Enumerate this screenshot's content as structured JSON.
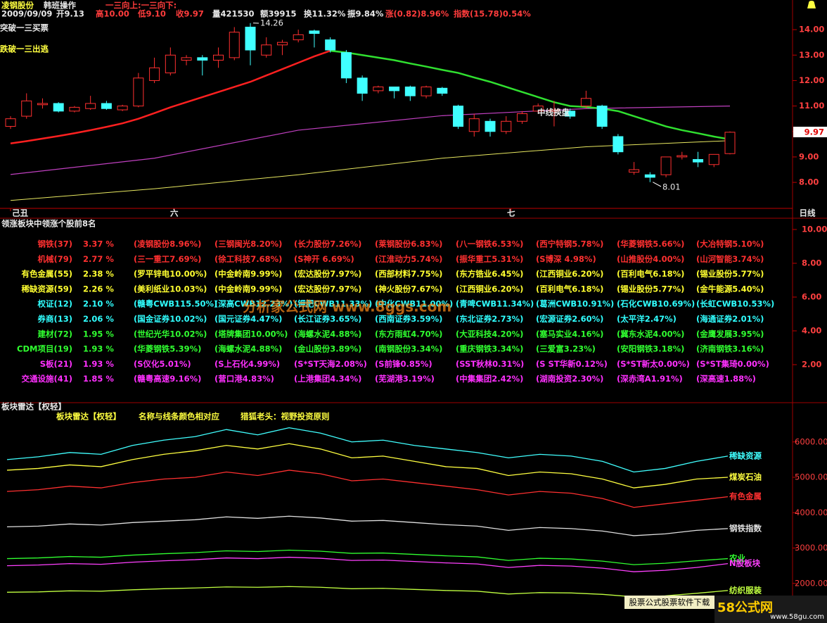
{
  "header": {
    "stock": "凌钢股份",
    "operator": "韩班操作",
    "signal": "一三向上:一三向下:",
    "quote": [
      "2009/09/09",
      "开9.13",
      "高10.00",
      "低9.10",
      "收9.97",
      "量421530",
      "额39915",
      "换11.32%",
      "振9.84%",
      "涨(0.82)8.96%",
      "指数(15.78)0.54%"
    ]
  },
  "kline": {
    "labels": [
      "突破一三买票",
      "跌破一三出逃"
    ],
    "period": "日线",
    "ylim": [
      7.09,
      14.39
    ],
    "yticks": [
      {
        "value": 8,
        "label": "8.00"
      },
      {
        "value": 9,
        "label": "9.00"
      },
      {
        "value": 10,
        "label": "10.00"
      },
      {
        "value": 11,
        "label": "11.00"
      },
      {
        "value": 12,
        "label": "12.00"
      },
      {
        "value": 13,
        "label": "13.00"
      },
      {
        "value": 14,
        "label": "14.00"
      }
    ],
    "xlabels": [
      "己丑",
      "六",
      "七"
    ],
    "candles": [
      [
        10.2,
        10.6,
        10.1,
        10.5
      ],
      [
        10.6,
        11.5,
        10.5,
        11.2
      ],
      [
        11.05,
        11.3,
        10.9,
        11.1
      ],
      [
        11.1,
        11.15,
        10.75,
        10.8
      ],
      [
        10.8,
        11.0,
        10.75,
        10.95
      ],
      [
        10.9,
        11.4,
        10.85,
        11.1
      ],
      [
        11.1,
        11.2,
        10.85,
        10.9
      ],
      [
        10.85,
        11.05,
        10.8,
        11.0
      ],
      [
        11.0,
        12.3,
        10.95,
        12.1
      ],
      [
        12.0,
        12.9,
        11.9,
        12.5
      ],
      [
        12.3,
        13.3,
        12.2,
        13.0
      ],
      [
        12.8,
        13.0,
        12.6,
        12.9
      ],
      [
        12.9,
        13.0,
        12.2,
        12.8
      ],
      [
        12.8,
        13.3,
        12.5,
        13.0
      ],
      [
        12.9,
        14.1,
        12.8,
        13.9
      ],
      [
        14.1,
        14.26,
        12.6,
        13.2
      ],
      [
        13.0,
        13.7,
        12.9,
        13.4
      ],
      [
        13.4,
        13.6,
        13.0,
        13.5
      ],
      [
        13.6,
        14.0,
        13.5,
        13.8
      ],
      [
        13.95,
        14.0,
        13.3,
        13.85
      ],
      [
        13.6,
        13.7,
        13.1,
        13.2
      ],
      [
        13.1,
        13.2,
        11.9,
        12.1
      ],
      [
        12.1,
        12.2,
        11.2,
        11.5
      ],
      [
        11.6,
        11.8,
        11.5,
        11.75
      ],
      [
        11.75,
        11.75,
        11.3,
        11.6
      ],
      [
        11.75,
        11.8,
        11.2,
        11.4
      ],
      [
        11.4,
        11.8,
        11.3,
        11.75
      ],
      [
        11.7,
        11.75,
        11.4,
        11.5
      ],
      [
        11.0,
        11.05,
        10.1,
        10.2
      ],
      [
        10.0,
        10.7,
        9.8,
        10.5
      ],
      [
        10.4,
        10.5,
        9.8,
        10.0
      ],
      [
        10.0,
        10.6,
        9.9,
        10.4
      ],
      [
        10.4,
        10.8,
        10.3,
        10.7
      ],
      [
        10.8,
        11.1,
        10.7,
        11.0
      ],
      [
        10.8,
        11.2,
        10.2,
        10.85
      ],
      [
        10.8,
        10.9,
        10.5,
        10.6
      ],
      [
        11.0,
        11.6,
        10.9,
        11.3
      ],
      [
        11.0,
        11.05,
        10.1,
        10.2
      ],
      [
        9.8,
        9.9,
        9.1,
        9.2
      ],
      [
        8.4,
        8.8,
        8.3,
        8.5
      ],
      [
        8.3,
        8.4,
        8.01,
        8.2
      ],
      [
        8.3,
        9.0,
        8.2,
        9.0
      ],
      [
        9.0,
        9.2,
        8.9,
        9.05
      ],
      [
        8.9,
        9.2,
        8.6,
        8.8
      ],
      [
        8.7,
        9.1,
        8.6,
        9.1
      ],
      [
        9.13,
        10.0,
        9.1,
        9.97
      ]
    ],
    "ma_red": [
      9.53,
      9.62,
      9.72,
      9.82,
      9.93,
      10.05,
      10.18,
      10.32,
      10.5,
      10.72,
      10.95,
      11.15,
      11.35,
      11.55,
      11.75,
      11.95,
      12.2,
      12.45,
      12.7,
      12.95,
      13.17,
      null,
      null,
      null,
      null,
      null,
      null,
      null,
      null,
      null,
      null,
      null,
      null,
      null,
      null,
      null,
      null,
      null,
      null,
      null,
      null,
      null,
      null,
      null,
      null,
      null
    ],
    "ma_green": [
      null,
      null,
      null,
      null,
      null,
      null,
      null,
      null,
      null,
      null,
      null,
      null,
      null,
      null,
      null,
      null,
      null,
      null,
      null,
      null,
      13.17,
      13.1,
      13.0,
      12.9,
      12.8,
      12.67,
      12.55,
      12.42,
      12.3,
      12.12,
      11.95,
      11.75,
      11.55,
      11.35,
      11.15,
      11.0,
      10.96,
      10.9,
      10.8,
      10.6,
      10.4,
      10.2,
      10.05,
      9.93,
      9.8,
      9.69
    ],
    "ma_long_x": [
      0,
      9,
      18,
      27,
      36,
      45
    ],
    "ma_magenta": [
      8.31,
      8.95,
      10.05,
      10.62,
      10.9,
      11.0
    ],
    "ma_yellow": [
      7.29,
      7.75,
      8.3,
      8.95,
      9.4,
      9.64
    ],
    "high_label": "14.26",
    "low_label": "8.01",
    "note": "中线换盘",
    "last_price": "9.97"
  },
  "sectors": {
    "title": "领涨板块中领涨个股前8名",
    "yticks": [
      {
        "value": 2,
        "label": "2.00"
      },
      {
        "value": 4,
        "label": "4.00"
      },
      {
        "value": 6,
        "label": "6.00"
      },
      {
        "value": 8,
        "label": "8.00"
      },
      {
        "value": 10,
        "label": "10.00"
      }
    ],
    "ylim": [
      0,
      10.5
    ],
    "rows": [
      {
        "name": "钢铁(37)",
        "pct": "3.37 %",
        "stocks": [
          "(凌钢股份8.96%)",
          "(三钢闽光8.20%)",
          "(长力股份7.26%)",
          "(莱钢股份6.83%)",
          "(八一钢铁6.53%)",
          "(西宁特钢5.78%)",
          "(华菱钢铁5.66%)",
          "(大冶特钢5.10%)"
        ]
      },
      {
        "name": "机械(79)",
        "pct": "2.77 %",
        "stocks": [
          "(三一重工7.69%)",
          "(徐工科技7.68%)",
          "(S神开  6.69%)",
          "(江淮动力5.74%)",
          "(振华重工5.31%)",
          "(S博深  4.98%)",
          "(山推股份4.00%)",
          "(山河智能3.74%)"
        ]
      },
      {
        "name": "有色金属(55)",
        "pct": "2.38 %",
        "stocks": [
          "(罗平锌电10.00%)",
          "(中金岭南9.99%)",
          "(宏达股份7.97%)",
          "(西部材料7.75%)",
          "(东方锆业6.45%)",
          "(江西铜业6.20%)",
          "(百利电气6.18%)",
          "(锡业股份5.77%)"
        ]
      },
      {
        "name": "稀缺资源(59)",
        "pct": "2.26 %",
        "stocks": [
          "(美利纸业10.03%)",
          "(中金岭南9.99%)",
          "(宏达股份7.97%)",
          "(神火股份7.67%)",
          "(江西铜业6.20%)",
          "(百利电气6.18%)",
          "(锡业股份5.77%)",
          "(金牛能源5.40%)"
        ]
      },
      {
        "name": "权证(12)",
        "pct": "2.10 %",
        "stocks": [
          "(赣粤CWB115.50%)",
          "(深高CWB12.23%)",
          "(钾肥CWB11.33%)",
          "(中化CWB11.00%)",
          "(青啤CWB11.34%)",
          "(葛洲CWB10.91%)",
          "(石化CWB10.69%)",
          "(长虹CWB10.53%)"
        ]
      },
      {
        "name": "券商(13)",
        "pct": "2.06 %",
        "stocks": [
          "(国金证券10.02%)",
          "(国元证券4.47%)",
          "(长江证券3.65%)",
          "(西南证券3.59%)",
          "(东北证券2.73%)",
          "(宏源证券2.60%)",
          "(太平洋2.47%)",
          "(海通证券2.01%)"
        ]
      },
      {
        "name": "建材(72)",
        "pct": "1.95 %",
        "stocks": [
          "(世纪光华10.02%)",
          "(塔牌集团10.00%)",
          "(海螺水泥4.88%)",
          "(东方雨虹4.70%)",
          "(大亚科技4.20%)",
          "(塞马实业4.16%)",
          "(冀东水泥4.00%)",
          "(金鹰发展3.95%)"
        ]
      },
      {
        "name": "CDM项目(19)",
        "pct": "1.93 %",
        "stocks": [
          "(华菱钢铁5.39%)",
          "(海螺水泥4.88%)",
          "(金山股份3.89%)",
          "(南钢股份3.34%)",
          "(重庆钢铁3.34%)",
          "(三爱富3.23%)",
          "(安阳钢铁3.18%)",
          "(济南钢铁3.16%)"
        ]
      },
      {
        "name": "S板(21)",
        "pct": "1.93 %",
        "stocks": [
          "(S仪化5.01%)",
          "(S上石化4.99%)",
          "(S*ST天海2.08%)",
          "(S前锋0.85%)",
          "(SST秋林0.31%)",
          "(S ST华新0.12%)",
          "(S*ST新太0.00%)",
          "(S*ST集琦0.00%)"
        ]
      },
      {
        "name": "交通设施(41)",
        "pct": "1.85 %",
        "stocks": [
          "(赣粤高速9.16%)",
          "(营口港4.83%)",
          "(上港集团4.34%)",
          "(芜湖港3.19%)",
          "(中集集团2.42%)",
          "(湖南投资2.30%)",
          "(深赤湾A1.91%)",
          "(深高速1.88%)"
        ]
      }
    ]
  },
  "radar": {
    "title": "板块雷达【权轻】",
    "subtitle": [
      "板块雷达【权轻】",
      "名称与线条颜色相对应",
      "猎狐老头：视野投资原则"
    ],
    "ylim": [
      1000,
      7050
    ],
    "yticks": [
      {
        "value": 2000,
        "label": "2000.00"
      },
      {
        "value": 3000,
        "label": "3000.00"
      },
      {
        "value": 4000,
        "label": "4000.00"
      },
      {
        "value": 5000,
        "label": "5000.00"
      },
      {
        "value": 6000,
        "label": "6000.00"
      }
    ],
    "series": [
      {
        "name": "稀缺资源",
        "color": "#40ffff",
        "values": [
          5500,
          5580,
          5700,
          5650,
          5900,
          6050,
          6150,
          6350,
          6200,
          6400,
          6250,
          6000,
          6050,
          5900,
          5800,
          5700,
          5550,
          5650,
          5600,
          5450,
          5150,
          5250,
          5450,
          5600
        ]
      },
      {
        "name": "煤炭石油",
        "color": "#ffff40",
        "values": [
          5200,
          5250,
          5350,
          5300,
          5500,
          5650,
          5750,
          5900,
          5800,
          5950,
          5800,
          5550,
          5600,
          5450,
          5300,
          5250,
          5050,
          5150,
          5100,
          4950,
          4700,
          4800,
          4950,
          5000
        ]
      },
      {
        "name": "有色金属",
        "color": "#ff3030",
        "values": [
          4600,
          4650,
          4750,
          4700,
          4850,
          4950,
          5000,
          5150,
          5050,
          5200,
          5100,
          4900,
          4950,
          4850,
          4750,
          4650,
          4500,
          4600,
          4550,
          4400,
          4150,
          4250,
          4350,
          4450
        ]
      },
      {
        "name": "钢铁指数",
        "color": "#e0e0e0",
        "values": [
          3600,
          3620,
          3680,
          3650,
          3720,
          3760,
          3800,
          3880,
          3840,
          3900,
          3850,
          3760,
          3780,
          3720,
          3660,
          3620,
          3500,
          3580,
          3550,
          3480,
          3350,
          3400,
          3500,
          3550
        ]
      },
      {
        "name": "农业",
        "color": "#30ff30",
        "values": [
          2700,
          2720,
          2760,
          2740,
          2800,
          2840,
          2870,
          2920,
          2900,
          2940,
          2910,
          2850,
          2860,
          2820,
          2780,
          2750,
          2650,
          2710,
          2690,
          2630,
          2530,
          2570,
          2640,
          2700
        ]
      },
      {
        "name": "N股板块",
        "color": "#ff40ff",
        "values": [
          2500,
          2520,
          2560,
          2540,
          2600,
          2640,
          2670,
          2720,
          2700,
          2740,
          2710,
          2650,
          2660,
          2620,
          2580,
          2550,
          2450,
          2510,
          2490,
          2430,
          2330,
          2370,
          2450,
          2560
        ]
      },
      {
        "name": "纺织服装",
        "color": "#c0ff40",
        "values": [
          1750,
          1760,
          1790,
          1780,
          1820,
          1850,
          1870,
          1900,
          1890,
          1910,
          1890,
          1850,
          1860,
          1830,
          1800,
          1780,
          1700,
          1740,
          1730,
          1690,
          1620,
          1650,
          1720,
          1800
        ]
      }
    ]
  },
  "watermark": "分析家公式网 www.8ggs.com",
  "footer": {
    "download": "股票公式股票软件下载",
    "logo": "58公式网",
    "url": "www.58gu.com"
  }
}
